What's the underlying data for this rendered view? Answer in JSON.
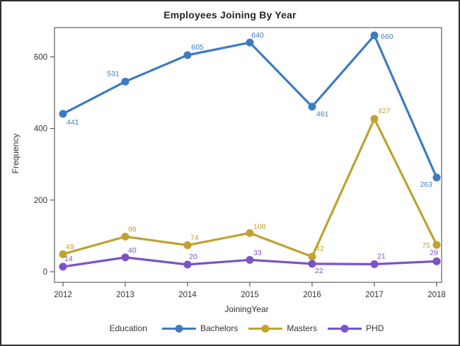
{
  "chart_data": {
    "type": "line",
    "title": "Employees Joining By Year",
    "xlabel": "JoiningYear",
    "ylabel": "Frequency",
    "x": [
      2012,
      2013,
      2014,
      2015,
      2016,
      2017,
      2018
    ],
    "series": [
      {
        "name": "Bachelors",
        "color": "#3E7BC1",
        "values": [
          441,
          531,
          605,
          640,
          461,
          660,
          263
        ]
      },
      {
        "name": "Masters",
        "color": "#C0A22E",
        "values": [
          49,
          98,
          74,
          108,
          42,
          427,
          75
        ]
      },
      {
        "name": "PHD",
        "color": "#7B52C7",
        "values": [
          14,
          40,
          20,
          33,
          22,
          21,
          29
        ]
      }
    ],
    "yticks": [
      0,
      200,
      400,
      600
    ],
    "ylim": [
      -30,
      690
    ],
    "grid": false,
    "point_labels": true,
    "legend": {
      "title": "Education",
      "position": "bottom"
    }
  },
  "style": {
    "frame_color": "#404040",
    "tick_text_color": "#333333",
    "background": "#ffffff"
  }
}
